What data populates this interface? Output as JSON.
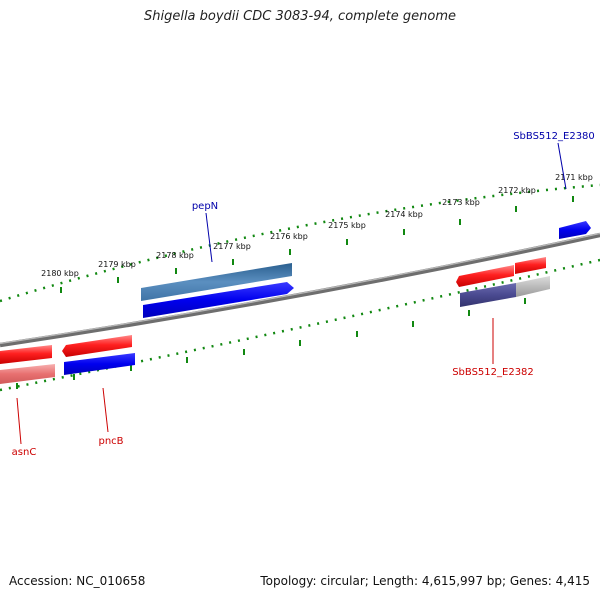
{
  "title": "Shigella boydii CDC 3083-94, complete genome",
  "footer": {
    "accession": "Accession: NC_010658",
    "summary": "Topology: circular; Length: 4,615,997 bp; Genes: 4,415"
  },
  "ticks": [
    "2171 kbp",
    "2172 kbp",
    "2173 kbp",
    "2174 kbp",
    "2175 kbp",
    "2176 kbp",
    "2177 kbp",
    "2178 kbp",
    "2179 kbp",
    "2180 kbp"
  ],
  "labels": {
    "pepN": "pepN",
    "sbbs_e2380": "SbBS512_E2380",
    "sbbs_e2382": "SbBS512_E2382",
    "pncB": "pncB",
    "asnC": "asnC"
  },
  "colors": {
    "forward_cds": "#ee0000",
    "reverse_cds": "#0000ee",
    "label_blue": "#0000aa",
    "label_red": "#cc0000",
    "backbone": "#808080",
    "tick_ring": "#118811"
  }
}
